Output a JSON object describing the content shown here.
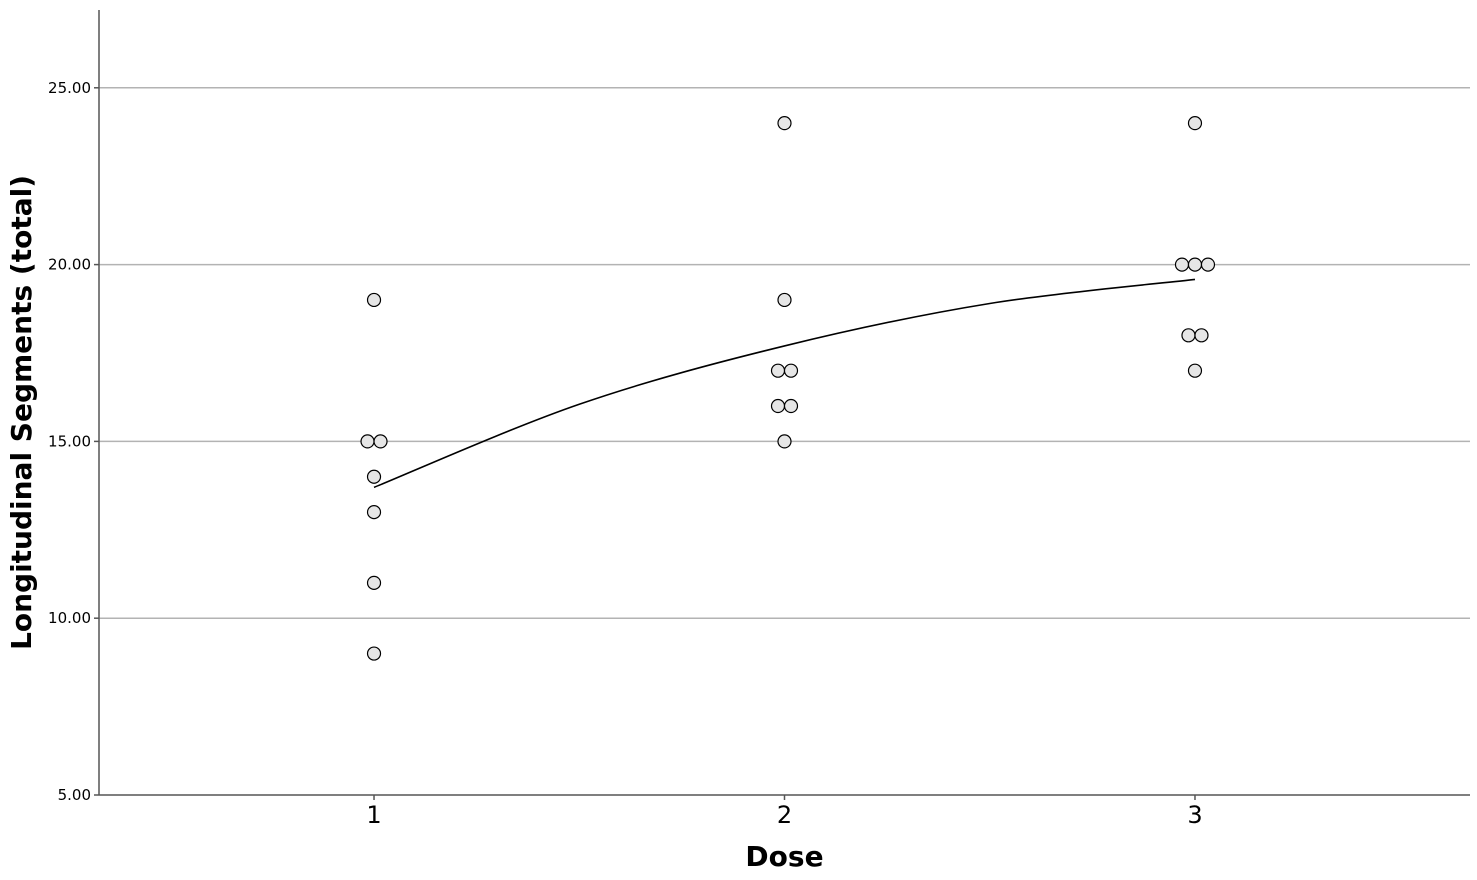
{
  "chart_data": {
    "type": "scatter",
    "title": "",
    "xlabel": "Dose",
    "ylabel": "Longitudinal Segments (total)",
    "xlim": [
      0.33,
      3.67
    ],
    "ylim": [
      5,
      27.2
    ],
    "x_ticks": [
      1,
      2,
      3
    ],
    "x_tick_labels": [
      "1",
      "2",
      "3"
    ],
    "y_ticks": [
      5,
      10,
      15,
      20,
      25
    ],
    "y_tick_labels": [
      "5.00",
      "10.00",
      "15.00",
      "20.00",
      "25.00"
    ],
    "grid": "horizontal",
    "legend": "none",
    "series": [
      {
        "x": [
          1,
          1,
          1,
          1,
          1,
          1,
          1,
          2,
          2,
          2,
          2,
          2,
          2,
          2,
          3,
          3,
          3,
          3,
          3,
          3,
          3
        ],
        "y": [
          19,
          15,
          15,
          14,
          13,
          11,
          9,
          24,
          19,
          17,
          17,
          16,
          16,
          15,
          24,
          20,
          20,
          20,
          18,
          18,
          17
        ]
      }
    ],
    "fit_line": {
      "x": [
        1,
        1.5,
        2,
        2.5,
        3
      ],
      "y": [
        13.7,
        16.05,
        17.7,
        18.9,
        19.58
      ]
    },
    "colors": {
      "marker_fill": "#e6e6e6",
      "marker_stroke": "#000000",
      "grid": "#b3b3b3",
      "axis": "#555555",
      "fit_line": "#000000"
    }
  }
}
